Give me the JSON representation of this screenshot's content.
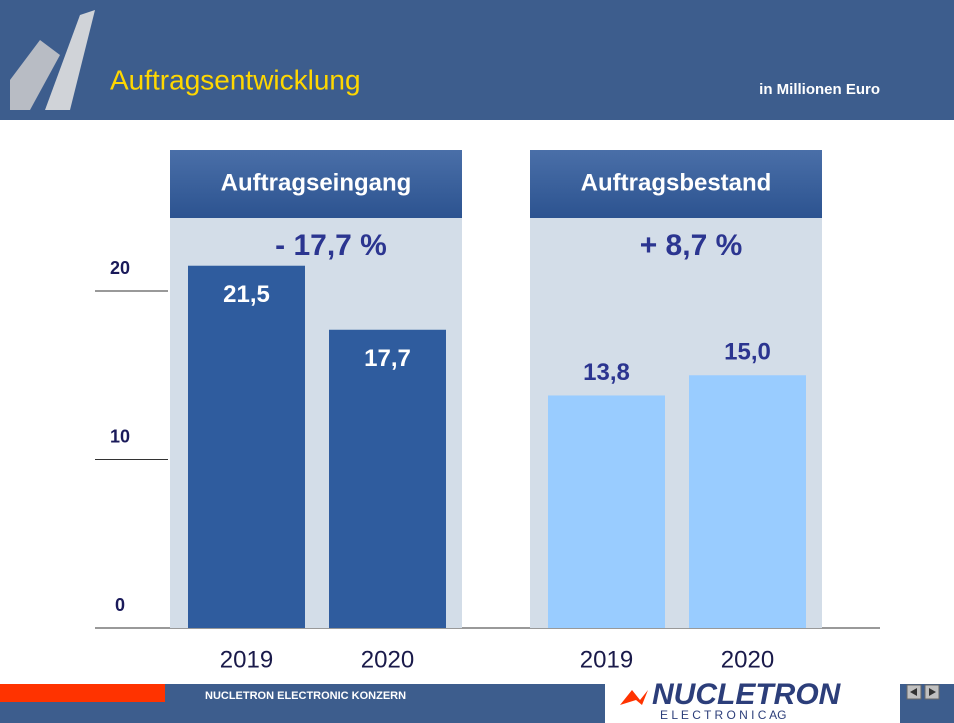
{
  "chart_data": {
    "type": "bar",
    "title": "Auftragsentwicklung",
    "subtitle": "in Millionen Euro",
    "ylim": [
      0,
      20
    ],
    "yticks": [
      0,
      10,
      20
    ],
    "panels": [
      {
        "title": "Auftragseingang",
        "change": "- 17,7 %",
        "categories": [
          "2019",
          "2020"
        ],
        "values": [
          21.5,
          17.7
        ],
        "value_labels": [
          "21,5",
          "17,7"
        ],
        "color": "#2f5c9e",
        "label_position": "inside"
      },
      {
        "title": "Auftragsbestand",
        "change": "+ 8,7 %",
        "categories": [
          "2019",
          "2020"
        ],
        "values": [
          13.8,
          15.0
        ],
        "value_labels": [
          "13,8",
          "15,0"
        ],
        "color": "#99ccff",
        "label_position": "above"
      }
    ]
  },
  "footer": {
    "text": "NUCLETRON ELECTRONIC KONZERN",
    "logo": "NUCLETRON",
    "logo_sub": "E L E C T R O N I C  AG"
  }
}
